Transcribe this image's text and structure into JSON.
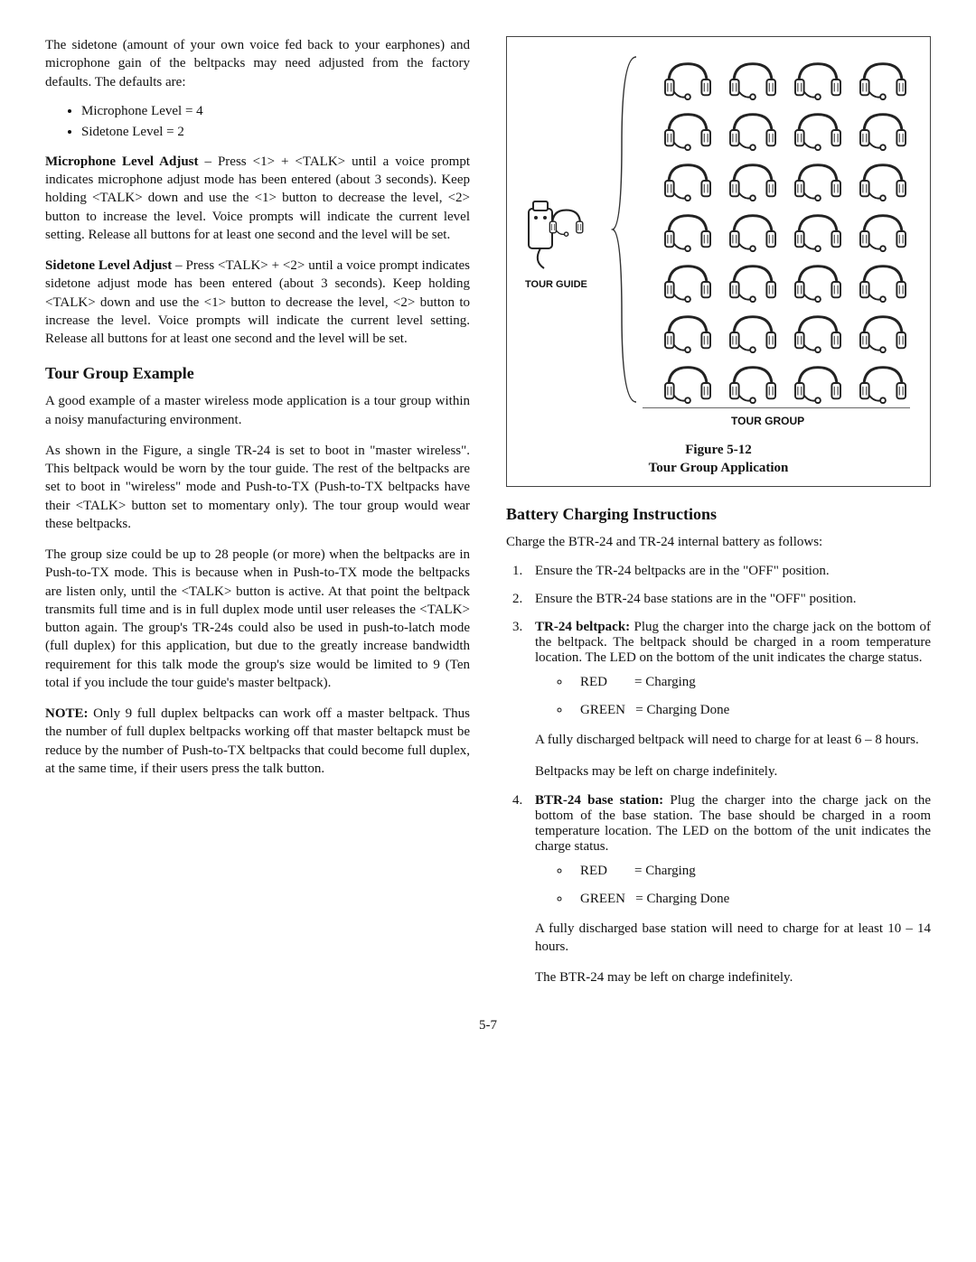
{
  "left": {
    "intro": "The sidetone (amount of your own voice fed back to your earphones) and microphone gain of the beltpacks may need adjusted from the factory defaults.  The defaults are:",
    "defaults": [
      "Microphone Level  = 4",
      "Sidetone Level       = 2"
    ],
    "mic_adjust_label": "Microphone Level Adjust",
    "mic_adjust_body": " – Press <1> + <TALK> until a voice prompt indicates microphone adjust mode has been entered (about 3 seconds). Keep holding <TALK> down and use the <1> button to decrease the level, <2> button to increase the level. Voice prompts will indicate the current level setting. Release all buttons for at least one second and the level will be set.",
    "side_adjust_label": "Sidetone Level Adjust",
    "side_adjust_body": " – Press <TALK> + <2> until a voice prompt indicates sidetone adjust mode has been entered (about 3 seconds).  Keep holding <TALK> down and use the <1> button to decrease the level, <2> button to increase the level. Voice prompts will indicate the current level setting. Release all buttons for at least one second and the level will be set.",
    "tour_heading": "Tour Group Example",
    "tour_p1": "A good example of a master wireless mode application is a tour group within a noisy manufacturing environment.",
    "tour_p2": "As shown in the Figure, a single TR-24 is set to boot in \"master wireless\". This beltpack would be worn by the tour guide. The rest of the beltpacks are set to boot in \"wireless\" mode and Push-to-TX (Push-to-TX beltpacks have their <TALK> button set to momentary only). The tour group would wear these beltpacks.",
    "tour_p3": "The group size could be up to 28 people (or more) when the beltpacks are in Push-to-TX mode. This is because when in Push-to-TX mode the beltpacks are listen only, until the <TALK> button is active. At that point the beltpack transmits full time and is in full duplex mode until user releases the <TALK> button again. The group's TR-24s could also be used in push-to-latch mode (full duplex) for this application, but due to the greatly increase bandwidth requirement for this talk mode the group's size would be limited to 9 (Ten total if you include the tour guide's master beltpack).",
    "note_label": "NOTE:",
    "note_body": "  Only 9 full duplex beltpacks can work off a master beltpack.  Thus the number of full duplex beltpacks working off that master beltapck must be reduce by the number of Push-to-TX beltpacks that could become full duplex, at the same time, if their users press the talk button."
  },
  "figure": {
    "guide_label": "TOUR GUIDE",
    "group_label": "TOUR GROUP",
    "caption_line1": "Figure 5-12",
    "caption_line2": "Tour Group Application"
  },
  "right": {
    "heading": "Battery Charging Instructions",
    "p1": "Charge the BTR-24 and TR-24 internal battery as follows:",
    "li1": "Ensure the TR-24 beltpacks are in the \"OFF\" position.",
    "li2": "Ensure the BTR-24 base stations are in the \"OFF\" position.",
    "li3_label": "TR-24 beltpack:",
    "li3_body": " Plug the charger into the charge jack on the bottom of the beltpack. The beltpack should be charged in a room temperature location. The LED on the bottom of the unit indicates the charge status.",
    "status_red": "RED        = Charging",
    "status_green": "GREEN   = Charging Done",
    "li3_p2": "A fully discharged beltpack will need to charge for at least 6 – 8 hours.",
    "li3_p3": "Beltpacks may be left on charge indefinitely.",
    "li4_label": "BTR-24 base station:",
    "li4_body": " Plug the charger into the charge jack on the bottom of the base station.  The base should be charged in a room temperature location. The LED on the bottom of the unit indicates the charge status.",
    "li4_p2": "A fully discharged base station will need to charge for at least 10 – 14 hours.",
    "li4_p3": "The BTR-24 may be left on charge indefinitely."
  },
  "pagenum": "5-7"
}
